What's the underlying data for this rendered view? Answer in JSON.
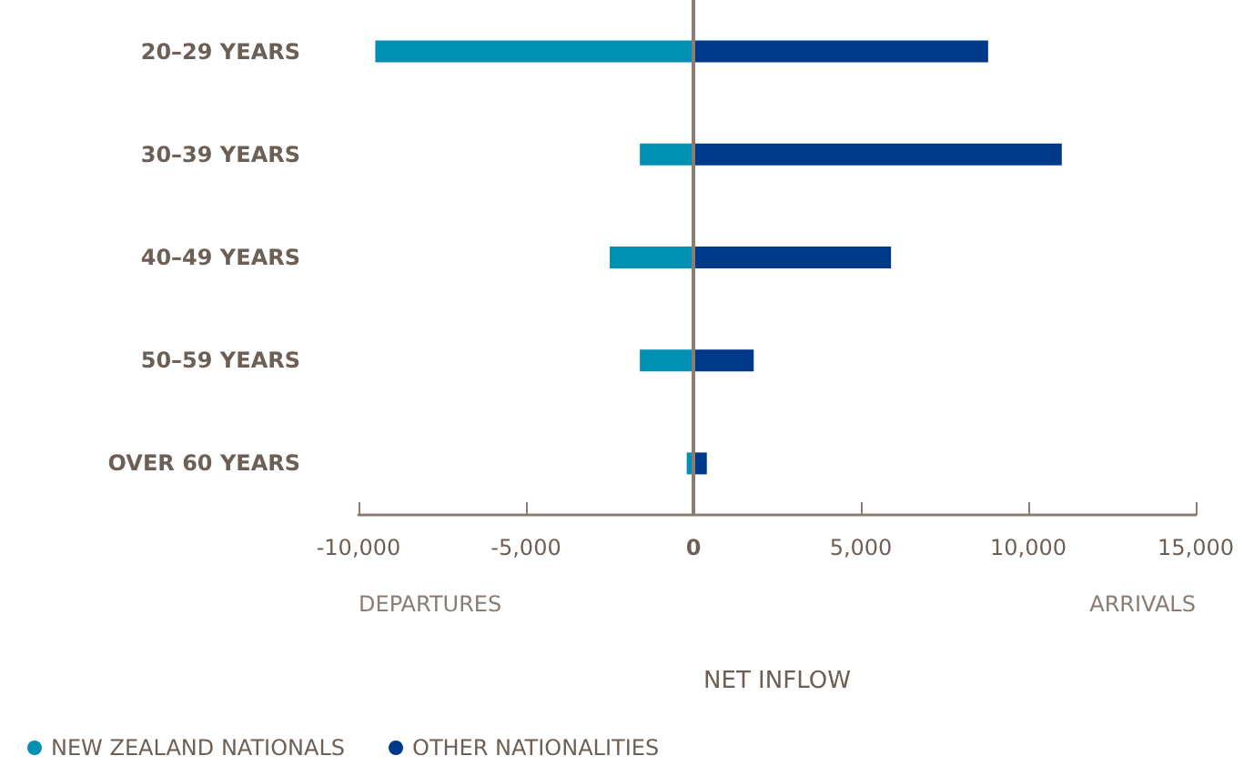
{
  "chart_data": {
    "type": "bar",
    "orientation": "horizontal",
    "xlabel": "NET INFLOW",
    "categories": [
      "20–29 YEARS",
      "30–39 YEARS",
      "40–49 YEARS",
      "50–59 YEARS",
      "OVER 60 YEARS"
    ],
    "series": [
      {
        "name": "NEW ZEALAND NATIONALS",
        "color": "#0090b4",
        "values": [
          -9500,
          -1600,
          -2500,
          -1600,
          -200
        ]
      },
      {
        "name": "OTHER NATIONALITIES",
        "color": "#00398a",
        "values": [
          8800,
          11000,
          5900,
          1800,
          400
        ]
      }
    ],
    "xlim": [
      -10000,
      15000
    ],
    "xticks": [
      {
        "value": -10000,
        "label": "-10,000"
      },
      {
        "value": -5000,
        "label": "-5,000"
      },
      0,
      {
        "value": 5000,
        "label": "5,000"
      },
      {
        "value": 10000,
        "label": "10,000"
      },
      {
        "value": 15000,
        "label": "15,000"
      }
    ],
    "annotations": [
      "DEPARTURES",
      "ARRIVALS"
    ],
    "ref_lines": [
      {
        "axis": "x",
        "value": 0,
        "color": "#8a7c72"
      }
    ],
    "stacked": true,
    "grid": false,
    "legend": "bottom left"
  }
}
